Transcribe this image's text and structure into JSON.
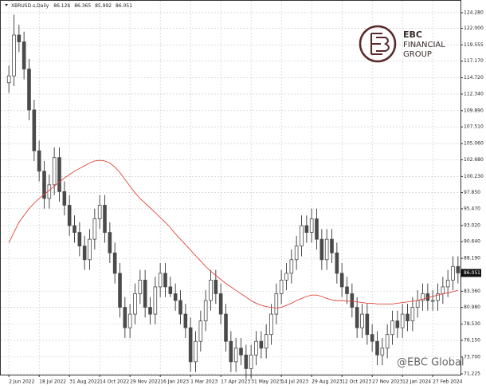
{
  "chart_data": {
    "type": "candlestick",
    "header": {
      "symbol": "XBRUSD.s,Daily",
      "open": 86.128,
      "high": 86.365,
      "low": 85.992,
      "close": 86.051
    },
    "logo": {
      "mark": "EBC",
      "line1": "FINANCIAL",
      "line2": "GROUP"
    },
    "watermark": "@EBC Global",
    "last_price": 86.051,
    "categories": [
      "2 Jun 2022",
      null,
      null,
      null,
      null,
      null,
      "18 Jul 2022",
      null,
      null,
      null,
      null,
      null,
      "31 Aug 2022",
      null,
      null,
      null,
      null,
      null,
      "14 Oct 2022",
      null,
      null,
      null,
      null,
      null,
      "29 Nov 2022",
      null,
      null,
      null,
      null,
      null,
      "16 Jan 2023",
      null,
      null,
      null,
      null,
      null,
      "1 Mar 2023",
      null,
      null,
      null,
      null,
      null,
      "17 Apr 2023",
      null,
      null,
      null,
      null,
      null,
      "31 May 2023",
      null,
      null,
      null,
      null,
      null,
      "14 Jul 2023",
      null,
      null,
      null,
      null,
      null,
      "29 Aug 2023",
      null,
      null,
      null,
      null,
      null,
      "12 Oct 2023",
      null,
      null,
      null,
      null,
      null,
      "27 Nov 2023",
      null,
      null,
      null,
      null,
      null,
      "12 Jan 2024",
      null,
      null,
      null,
      null,
      null,
      "27 Feb 2024",
      null,
      null,
      null,
      null,
      null
    ],
    "open": [
      114,
      115,
      121,
      120,
      116,
      110,
      104,
      101,
      97,
      99,
      103,
      98,
      96,
      93,
      92,
      90,
      88,
      91,
      94,
      96,
      92,
      89,
      86,
      81,
      78,
      80,
      83,
      85,
      81,
      80,
      84,
      86,
      84,
      83,
      82,
      80,
      78,
      73,
      76,
      79,
      82,
      85,
      83,
      80,
      76,
      73,
      75,
      74,
      72,
      74,
      76,
      75,
      77,
      80,
      83,
      85,
      86,
      88,
      90,
      93,
      92,
      94,
      91,
      88,
      91,
      89,
      86,
      84,
      83,
      81,
      78,
      80,
      77,
      76,
      74,
      75,
      77,
      79,
      78,
      80,
      79,
      81,
      82,
      83,
      82,
      82,
      83,
      84,
      85,
      87
    ],
    "high": [
      116.5,
      124,
      122.5,
      121.5,
      117.5,
      111.5,
      105.5,
      102.5,
      100.5,
      104.5,
      104.5,
      99.5,
      97.5,
      94.5,
      93.5,
      91.5,
      92.5,
      95.5,
      97.5,
      97.5,
      93.5,
      90.5,
      87.5,
      82.5,
      81.5,
      84.5,
      86.5,
      86.5,
      82.5,
      85.5,
      87.5,
      87.5,
      85.5,
      84.5,
      83.5,
      81.5,
      79.5,
      77.5,
      80.5,
      83.5,
      86.5,
      86.5,
      84.5,
      81.5,
      77.5,
      76.5,
      76.5,
      75.5,
      75.5,
      77.5,
      77.5,
      78.5,
      81.5,
      84.5,
      86.5,
      87.5,
      89.5,
      91.5,
      94.5,
      94.5,
      95.5,
      95.5,
      92.5,
      92.5,
      92.5,
      90.5,
      87.5,
      85.5,
      84.5,
      82.5,
      81.5,
      81.5,
      78.5,
      77.5,
      76.5,
      78.5,
      80.5,
      80.5,
      81.5,
      81.5,
      82.5,
      83.5,
      84.5,
      84.5,
      83.5,
      84.5,
      85.5,
      86.5,
      88.5,
      88.5
    ],
    "low": [
      112.5,
      113.5,
      118.5,
      114.5,
      108.5,
      102.5,
      99.5,
      95.5,
      95.5,
      97.5,
      96.5,
      94.5,
      91.5,
      90.5,
      88.5,
      86.5,
      86.5,
      89.5,
      92.5,
      90.5,
      87.5,
      84.5,
      79.5,
      76.5,
      76.5,
      78.5,
      81.5,
      79.5,
      78.5,
      78.5,
      82.5,
      82.5,
      82.5,
      80.5,
      78.5,
      76.5,
      71.5,
      71.5,
      74.5,
      77.5,
      80.5,
      81.5,
      78.5,
      74.5,
      71.5,
      71.5,
      72.5,
      70.5,
      70.5,
      72.5,
      73.5,
      73.5,
      75.5,
      78.5,
      81.5,
      83.5,
      84.5,
      86.5,
      88.5,
      90.5,
      90.5,
      89.5,
      86.5,
      86.5,
      87.5,
      84.5,
      82.5,
      81.5,
      79.5,
      76.5,
      76.5,
      75.5,
      74.5,
      72.5,
      72.5,
      73.5,
      75.5,
      76.5,
      76.5,
      77.5,
      77.5,
      79.5,
      80.5,
      80.5,
      80.5,
      80.5,
      81.5,
      82.5,
      83.5,
      84.5
    ],
    "close": [
      115,
      121,
      120,
      116,
      110,
      104,
      101,
      97,
      99,
      103,
      98,
      96,
      93,
      92,
      90,
      88,
      91,
      94,
      96,
      92,
      89,
      86,
      81,
      78,
      80,
      83,
      85,
      81,
      80,
      84,
      86,
      84,
      83,
      82,
      80,
      78,
      73,
      76,
      79,
      82,
      85,
      83,
      80,
      76,
      73,
      75,
      74,
      72,
      74,
      76,
      75,
      77,
      80,
      83,
      85,
      86,
      88,
      90,
      93,
      92,
      94,
      91,
      88,
      91,
      89,
      86,
      84,
      83,
      81,
      78,
      80,
      77,
      76,
      74,
      75,
      77,
      79,
      78,
      80,
      79,
      81,
      82,
      83,
      82,
      82,
      83,
      84,
      85,
      87,
      86.051
    ],
    "candle_color": "#4a4a4a",
    "ma": {
      "color": "#e0463c",
      "values": [
        90.5,
        92,
        93.5,
        94.5,
        95.5,
        96.3,
        97,
        97.6,
        98.2,
        98.8,
        99.4,
        100,
        100.5,
        101,
        101.4,
        101.8,
        102.2,
        102.5,
        102.6,
        102.5,
        102.2,
        101.6,
        100.8,
        99.8,
        98.8,
        97.8,
        97,
        96.3,
        95.6,
        94.9,
        94.2,
        93.5,
        92.7,
        91.8,
        91,
        90.2,
        89.4,
        88.6,
        87.8,
        87,
        86.3,
        85.7,
        85.1,
        84.5,
        84,
        83.5,
        83,
        82.5,
        82,
        81.6,
        81.3,
        81.1,
        81,
        80.9,
        81,
        81.3,
        81.6,
        82,
        82.3,
        82.6,
        82.8,
        82.8,
        82.6,
        82.3,
        82.1,
        82,
        82,
        81.9,
        81.9,
        81.8,
        81.7,
        81.6,
        81.6,
        81.5,
        81.5,
        81.5,
        81.5,
        81.6,
        81.7,
        81.8,
        81.9,
        82,
        82.2,
        82.4,
        82.6,
        82.8,
        83,
        83.1,
        83.3,
        83.5
      ]
    },
    "ylim": [
      71.108,
      126.033
    ],
    "yticks": [
      {
        "value": 124.28,
        "label": "124.280"
      },
      {
        "value": 122,
        "label": "122.000"
      },
      {
        "value": 119.555,
        "label": "119.555"
      },
      {
        "value": 117.17,
        "label": "117.170"
      },
      {
        "value": 114.72,
        "label": "114.720"
      },
      {
        "value": 112.34,
        "label": "112.340"
      },
      {
        "value": 109.89,
        "label": "109.890"
      },
      {
        "value": 107.51,
        "label": "107.510"
      },
      {
        "value": 105.06,
        "label": "105.060"
      },
      {
        "value": 102.68,
        "label": "102.680"
      },
      {
        "value": 100.23,
        "label": "100.230"
      },
      {
        "value": 97.85,
        "label": "97.850"
      },
      {
        "value": 95.47,
        "label": "95.470"
      },
      {
        "value": 93.02,
        "label": "93.020"
      },
      {
        "value": 90.64,
        "label": "90.640"
      },
      {
        "value": 88.19,
        "label": "88.190"
      },
      {
        "value": 83.36,
        "label": "83.360"
      },
      {
        "value": 80.98,
        "label": "80.980"
      },
      {
        "value": 78.53,
        "label": "78.530"
      },
      {
        "value": 76.15,
        "label": "76.150"
      },
      {
        "value": 73.7,
        "label": "73.700"
      },
      {
        "value": 71.225,
        "label": "71.225"
      }
    ],
    "grid": true
  }
}
